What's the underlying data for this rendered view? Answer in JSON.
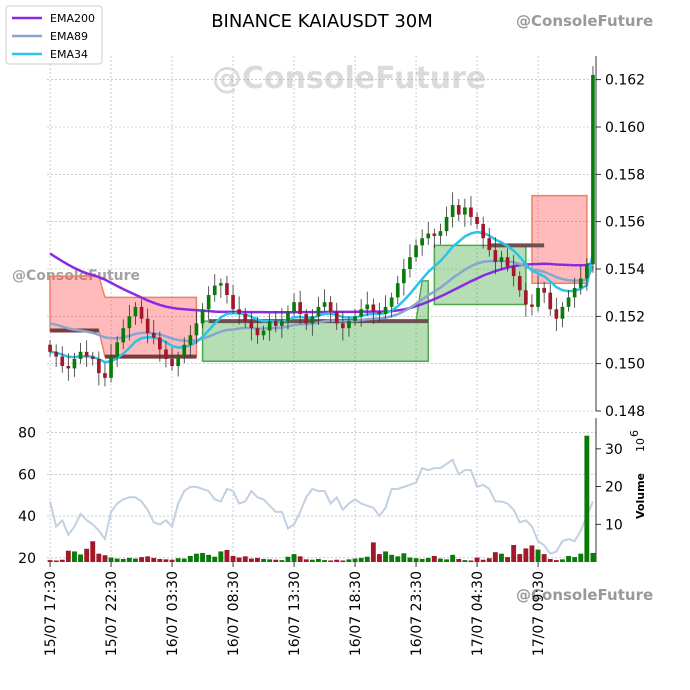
{
  "title": "BINANCE KAIAUSDT 30M",
  "watermark": "@ConsoleFuture",
  "legend": [
    {
      "name": "EMA200",
      "color": "#8a2be2"
    },
    {
      "name": "EMA89",
      "color": "#8aa4d0"
    },
    {
      "name": "EMA34",
      "color": "#29c4e6"
    }
  ],
  "colors": {
    "up": "#0a7a0a",
    "down": "#a3172b"
  },
  "volume_axis_label": "Volume",
  "volume_axis_exponent": "10",
  "volume_axis_exponent_power": "6",
  "chart_data": [
    {
      "type": "candlestick",
      "title": "BINANCE KAIAUSDT 30M",
      "ylim": [
        0.148,
        0.163
      ],
      "y_ticks": [
        0.148,
        0.15,
        0.152,
        0.154,
        0.156,
        0.158,
        0.16,
        0.162
      ],
      "y_tick_labels": [
        "0.148",
        "0.150",
        "0.152",
        "0.154",
        "0.156",
        "0.158",
        "0.160",
        "0.162"
      ],
      "x_tick_labels": [
        "15/07 17:30",
        "15/07 22:30",
        "16/07 03:30",
        "16/07 08:30",
        "16/07 13:30",
        "16/07 18:30",
        "16/07 23:30",
        "17/07 04:30",
        "17/07 09:30"
      ],
      "x_tick_index": [
        0,
        10,
        20,
        30,
        40,
        50,
        60,
        70,
        80
      ],
      "grid": true,
      "legend_position": "top-left",
      "close": [
        0.1505,
        0.1503,
        0.1499,
        0.1498,
        0.1502,
        0.1505,
        0.1503,
        0.1502,
        0.1496,
        0.1494,
        0.1503,
        0.1509,
        0.1515,
        0.152,
        0.1524,
        0.1519,
        0.1513,
        0.1511,
        0.1506,
        0.1502,
        0.1499,
        0.1503,
        0.1508,
        0.1512,
        0.1517,
        0.1523,
        0.1529,
        0.1533,
        0.1534,
        0.1529,
        0.1523,
        0.1521,
        0.1518,
        0.1515,
        0.1512,
        0.1514,
        0.1518,
        0.1516,
        0.1518,
        0.1522,
        0.1526,
        0.1521,
        0.1517,
        0.152,
        0.1524,
        0.1526,
        0.1522,
        0.1517,
        0.1515,
        0.1518,
        0.152,
        0.1523,
        0.1525,
        0.1522,
        0.1521,
        0.1524,
        0.1528,
        0.1534,
        0.154,
        0.1545,
        0.155,
        0.1553,
        0.1555,
        0.1554,
        0.1556,
        0.1562,
        0.1567,
        0.1563,
        0.1566,
        0.1562,
        0.1559,
        0.1553,
        0.1548,
        0.1543,
        0.1545,
        0.1541,
        0.1537,
        0.1531,
        0.1525,
        0.1524,
        0.1532,
        0.153,
        0.1523,
        0.1519,
        0.1524,
        0.1528,
        0.1532,
        0.1536,
        0.1542,
        0.1622
      ],
      "ema200": [
        0.15465,
        0.15449,
        0.15433,
        0.15418,
        0.15404,
        0.15392,
        0.15382,
        0.15374,
        0.15366,
        0.15355,
        0.15342,
        0.15328,
        0.15315,
        0.15303,
        0.15291,
        0.15279,
        0.15267,
        0.15257,
        0.15248,
        0.15241,
        0.15236,
        0.15232,
        0.1523,
        0.15228,
        0.15226,
        0.15224,
        0.15222,
        0.1522,
        0.15219,
        0.15219,
        0.15219,
        0.15219,
        0.15218,
        0.15218,
        0.15218,
        0.15218,
        0.15217,
        0.15217,
        0.15217,
        0.15217,
        0.15217,
        0.15218,
        0.15218,
        0.15218,
        0.15218,
        0.15218,
        0.15219,
        0.15219,
        0.15219,
        0.15219,
        0.15219,
        0.1522,
        0.1522,
        0.1522,
        0.1522,
        0.1522,
        0.15222,
        0.15225,
        0.15229,
        0.15235,
        0.15243,
        0.15252,
        0.15262,
        0.15273,
        0.15284,
        0.15296,
        0.15309,
        0.15322,
        0.15335,
        0.15348,
        0.1536,
        0.15372,
        0.15382,
        0.15391,
        0.15399,
        0.15406,
        0.15412,
        0.15416,
        0.15419,
        0.1542,
        0.15421,
        0.15422,
        0.15421,
        0.15419,
        0.15418,
        0.15417,
        0.15416,
        0.15416,
        0.15417,
        0.15426
      ]
    },
    {
      "type": "bar",
      "title": "Volume",
      "ylabel": "Volume",
      "ylim_millions": [
        0,
        35
      ],
      "y_ticks_millions": [
        10,
        20,
        30
      ],
      "left_ticks": [
        20,
        40,
        60,
        80
      ],
      "left_ylim": [
        18,
        87
      ],
      "volume_millions": [
        0.5,
        0.4,
        0.6,
        3,
        2.8,
        2,
        3.5,
        5.5,
        2.2,
        1.8,
        1.2,
        0.9,
        0.8,
        1.1,
        0.9,
        1.3,
        1.5,
        1.1,
        0.8,
        0.7,
        0.6,
        1,
        0.9,
        1.6,
        2.2,
        2.4,
        1.9,
        1.4,
        2.8,
        3.2,
        1.6,
        1.2,
        1.5,
        0.9,
        1.1,
        0.8,
        0.7,
        0.6,
        0.5,
        1.4,
        2.1,
        1.5,
        0.7,
        0.6,
        0.8,
        0.5,
        0.4,
        0.6,
        0.4,
        0.7,
        0.9,
        1.1,
        1.4,
        5.2,
        2.1,
        2.8,
        1.9,
        1.5,
        2.3,
        1.2,
        1,
        0.8,
        1.1,
        1.6,
        0.9,
        0.7,
        1.9,
        0.8,
        0.5,
        0.4,
        1.2,
        0.6,
        1,
        2.6,
        2.2,
        1.3,
        4.5,
        2.1,
        3.6,
        4.4,
        3.3,
        2.1,
        0.8,
        0.5,
        0.7,
        1.6,
        1.3,
        2.2,
        33.5,
        2.4
      ],
      "rsi": [
        47,
        35,
        38,
        31,
        35,
        41,
        38,
        36,
        33,
        29,
        42,
        46,
        48,
        49,
        49,
        47,
        43,
        37,
        36,
        38,
        35,
        46,
        52,
        54,
        54,
        53,
        52,
        48,
        47,
        53,
        52,
        46,
        47,
        52,
        49,
        48,
        45,
        42,
        42,
        34,
        36,
        42,
        49,
        53,
        52,
        52,
        46,
        49,
        43,
        46,
        48,
        46,
        45,
        44,
        40,
        44,
        53,
        53,
        54,
        55,
        56,
        63,
        62,
        63,
        63,
        65,
        67,
        60,
        62,
        62,
        54,
        55,
        53,
        47,
        47,
        46,
        43,
        37,
        38,
        35,
        28,
        26,
        22,
        23,
        28,
        29,
        28,
        33,
        40,
        47
      ]
    }
  ]
}
